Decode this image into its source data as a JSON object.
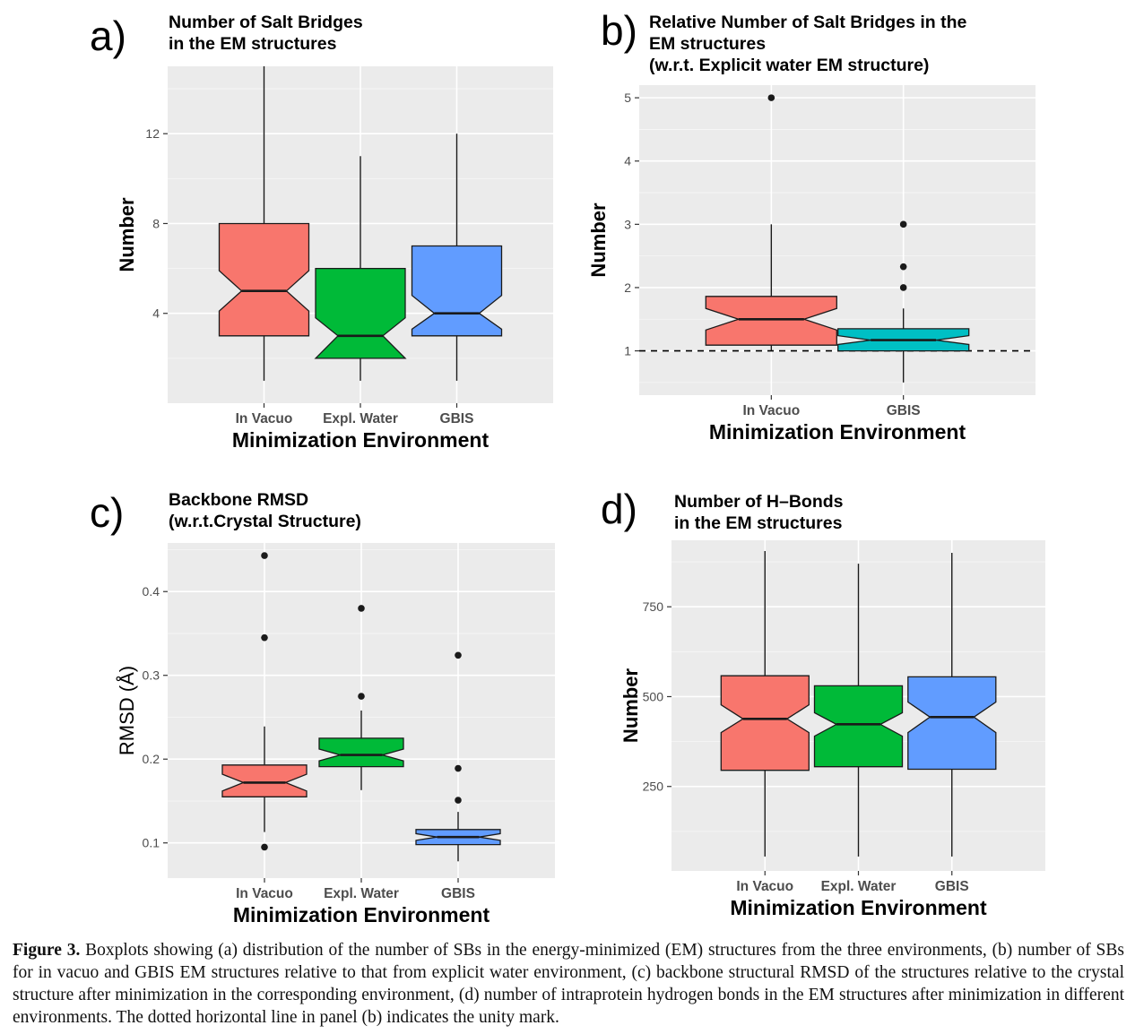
{
  "chart_data": [
    {
      "type": "boxplot",
      "panel_label": "a)",
      "title": [
        "Number of Salt Bridges",
        "in the EM structures"
      ],
      "xlabel": "Minimization Environment",
      "ylabel": "Number",
      "ylim": [
        0,
        15
      ],
      "yticks": [
        4,
        8,
        12
      ],
      "ytick_labels": [
        "4",
        "8",
        "12"
      ],
      "notched": true,
      "categories": [
        "In Vacuo",
        "Expl. Water",
        "GBIS"
      ],
      "boxes": [
        {
          "category": "In Vacuo",
          "color": "#F8766D",
          "whisker_low": 1,
          "q1": 3,
          "notch_low": 4.1,
          "median": 5,
          "notch_high": 5.9,
          "q3": 8,
          "whisker_high": 15,
          "outliers": []
        },
        {
          "category": "Expl. Water",
          "color": "#00BA38",
          "whisker_low": 1,
          "q1": 2,
          "notch_low": 2,
          "median": 3,
          "notch_high": 3.8,
          "q3": 6,
          "whisker_high": 11,
          "outliers": []
        },
        {
          "category": "GBIS",
          "color": "#619CFF",
          "whisker_low": 1,
          "q1": 3,
          "notch_low": 3.3,
          "median": 4,
          "notch_high": 4.8,
          "q3": 7,
          "whisker_high": 12,
          "outliers": []
        }
      ]
    },
    {
      "type": "boxplot",
      "panel_label": "b)",
      "title": [
        "Relative Number of Salt Bridges in the",
        "EM structures",
        "(w.r.t. Explicit water EM structure)"
      ],
      "xlabel": "Minimization Environment",
      "ylabel": "Number",
      "ylim": [
        0.3,
        5.2
      ],
      "yticks": [
        1,
        2,
        3,
        4,
        5
      ],
      "ytick_labels": [
        "1",
        "2",
        "3",
        "4",
        "5"
      ],
      "reference_line": 1,
      "notched": true,
      "categories": [
        "In Vacuo",
        "GBIS"
      ],
      "boxes": [
        {
          "category": "In Vacuo",
          "color": "#F8766D",
          "whisker_low": 1,
          "q1": 1.09,
          "notch_low": 1.33,
          "median": 1.5,
          "notch_high": 1.67,
          "q3": 1.86,
          "whisker_high": 3,
          "outliers": [
            5
          ]
        },
        {
          "category": "GBIS",
          "color": "#00BFC4",
          "whisker_low": 0.5,
          "q1": 1.0,
          "notch_low": 1.1,
          "median": 1.17,
          "notch_high": 1.24,
          "q3": 1.35,
          "whisker_high": 1.67,
          "outliers": [
            2,
            2.33,
            3
          ]
        }
      ]
    },
    {
      "type": "boxplot",
      "panel_label": "c)",
      "title": [
        "Backbone RMSD",
        "(w.r.t.Crystal Structure)"
      ],
      "xlabel": "Minimization Environment",
      "ylabel": "RMSD (Å)",
      "ylim": [
        0.058,
        0.458
      ],
      "yticks": [
        0.1,
        0.2,
        0.3,
        0.4
      ],
      "ytick_labels": [
        "0.1",
        "0.2",
        "0.3",
        "0.4"
      ],
      "notched": true,
      "categories": [
        "In Vacuo",
        "Expl. Water",
        "GBIS"
      ],
      "boxes": [
        {
          "category": "In Vacuo",
          "color": "#F8766D",
          "whisker_low": 0.113,
          "q1": 0.155,
          "notch_low": 0.162,
          "median": 0.172,
          "notch_high": 0.182,
          "q3": 0.193,
          "whisker_high": 0.239,
          "outliers": [
            0.095,
            0.345,
            0.443
          ]
        },
        {
          "category": "Expl. Water",
          "color": "#00BA38",
          "whisker_low": 0.163,
          "q1": 0.191,
          "notch_low": 0.198,
          "median": 0.205,
          "notch_high": 0.212,
          "q3": 0.225,
          "whisker_high": 0.258,
          "outliers": [
            0.275,
            0.38
          ]
        },
        {
          "category": "GBIS",
          "color": "#619CFF",
          "whisker_low": 0.078,
          "q1": 0.098,
          "notch_low": 0.103,
          "median": 0.107,
          "notch_high": 0.111,
          "q3": 0.116,
          "whisker_high": 0.137,
          "outliers": [
            0.151,
            0.189,
            0.324
          ]
        }
      ]
    },
    {
      "type": "boxplot",
      "panel_label": "d)",
      "title": [
        "Number of H–Bonds",
        "in the EM structures"
      ],
      "xlabel": "Minimization Environment",
      "ylabel": "Number",
      "ylim": [
        15,
        935
      ],
      "yticks": [
        250,
        500,
        750
      ],
      "ytick_labels": [
        "250",
        "500",
        "750"
      ],
      "notched": true,
      "categories": [
        "In Vacuo",
        "Expl. Water",
        "GBIS"
      ],
      "boxes": [
        {
          "category": "In Vacuo",
          "color": "#F8766D",
          "whisker_low": 55,
          "q1": 295,
          "notch_low": 400,
          "median": 438,
          "notch_high": 477,
          "q3": 558,
          "whisker_high": 905,
          "outliers": []
        },
        {
          "category": "Expl. Water",
          "color": "#00BA38",
          "whisker_low": 55,
          "q1": 305,
          "notch_low": 390,
          "median": 423,
          "notch_high": 455,
          "q3": 530,
          "whisker_high": 870,
          "outliers": []
        },
        {
          "category": "GBIS",
          "color": "#619CFF",
          "whisker_low": 55,
          "q1": 298,
          "notch_low": 400,
          "median": 443,
          "notch_high": 485,
          "q3": 555,
          "whisker_high": 900,
          "outliers": []
        }
      ]
    }
  ],
  "caption": {
    "label": "Figure 3.",
    "text": "Boxplots showing (a) distribution of the number of SBs in the energy-minimized (EM) structures from the three environments, (b) number of SBs for in vacuo and GBIS EM structures relative to that from explicit water environment, (c) backbone structural RMSD of the structures relative to the crystal structure after minimization in the corresponding environment, (d) number of intraprotein hydrogen bonds in the EM structures after minimization in different environments. The dotted horizontal line in panel (b) indicates the unity mark."
  }
}
